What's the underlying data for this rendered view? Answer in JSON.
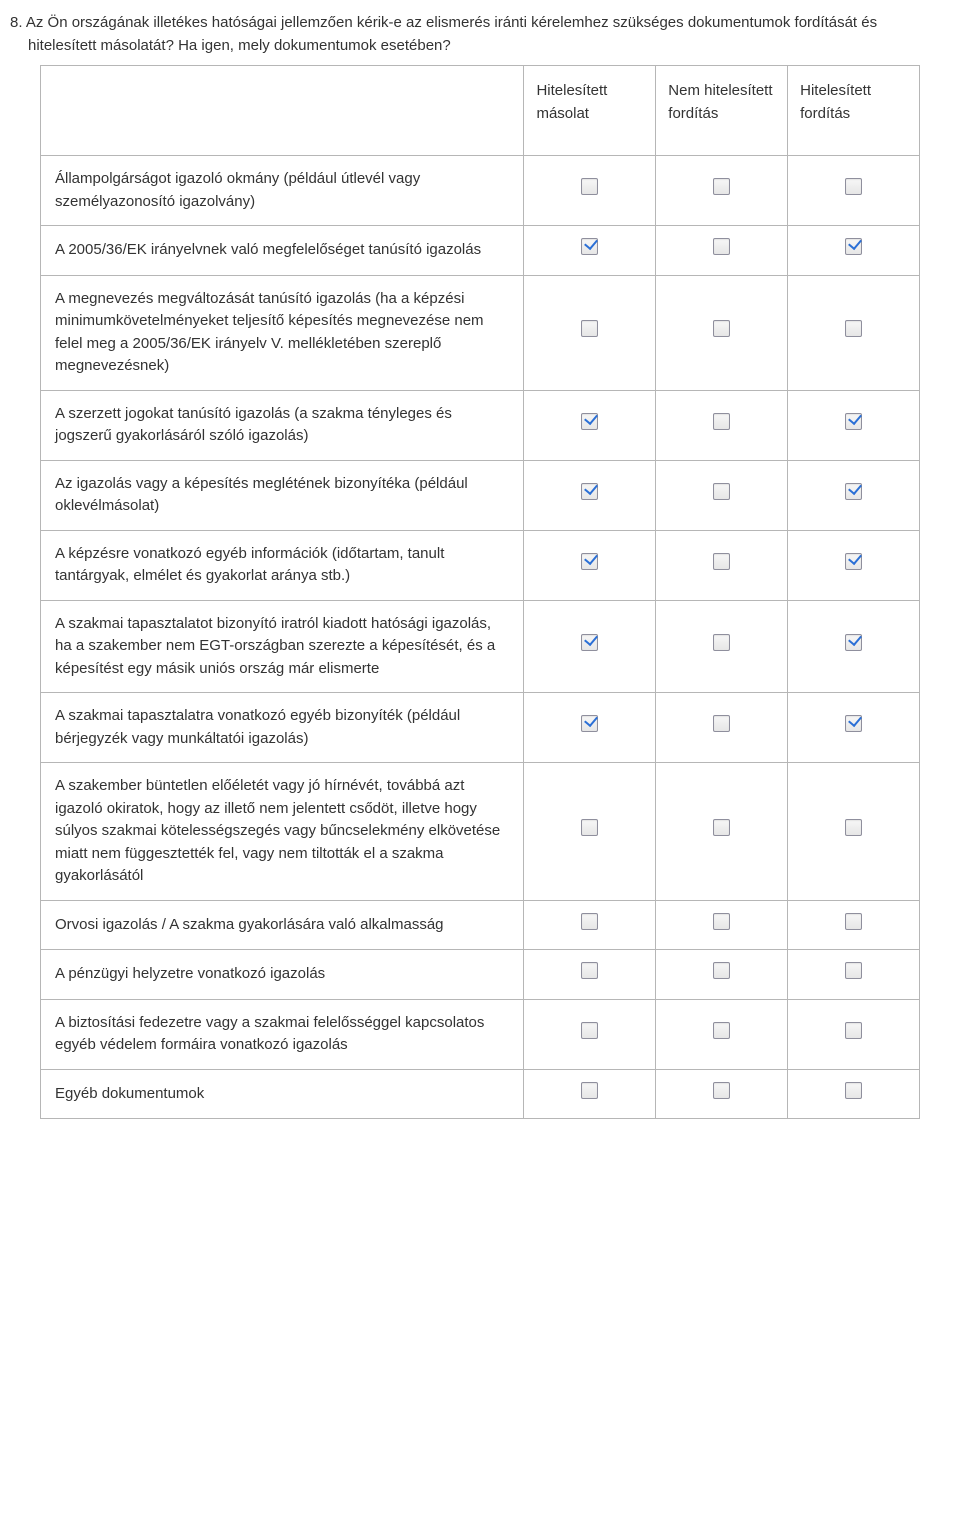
{
  "question": "8. Az Ön országának illetékes hatóságai jellemzően kérik-e az elismerés iránti kérelemhez szükséges dokumentumok fordítását és hitelesített másolatát? Ha igen, mely dokumentumok esetében?",
  "headers": {
    "col1": "Hitelesített másolat",
    "col2": "Nem hitelesített fordítás",
    "col3": "Hitelesített fordítás"
  },
  "rows": [
    {
      "label": "Állampolgárságot igazoló okmány (például útlevél vagy személyazonosító igazolvány)",
      "c1": false,
      "c2": false,
      "c3": false
    },
    {
      "label": "A 2005/36/EK irányelvnek való megfelelőséget tanúsító igazolás",
      "c1": true,
      "c2": false,
      "c3": true
    },
    {
      "label": "A megnevezés megváltozását tanúsító igazolás (ha a képzési minimumkövetelményeket teljesítő képesítés megnevezése nem felel meg a 2005/36/EK irányelv V. mellékletében szereplő megnevezésnek)",
      "c1": false,
      "c2": false,
      "c3": false
    },
    {
      "label": "A szerzett jogokat tanúsító igazolás (a szakma tényleges és jogszerű gyakorlásáról szóló igazolás)",
      "c1": true,
      "c2": false,
      "c3": true
    },
    {
      "label": "Az igazolás vagy a képesítés meglétének bizonyítéka (például oklevélmásolat)",
      "c1": true,
      "c2": false,
      "c3": true
    },
    {
      "label": "A képzésre vonatkozó egyéb információk (időtartam, tanult tantárgyak, elmélet és gyakorlat aránya stb.)",
      "c1": true,
      "c2": false,
      "c3": true
    },
    {
      "label": "A szakmai tapasztalatot bizonyító iratról kiadott hatósági igazolás, ha a szakember nem EGT-országban szerezte a képesítését, és a képesítést egy másik uniós ország már elismerte",
      "c1": true,
      "c2": false,
      "c3": true
    },
    {
      "label": "A szakmai tapasztalatra vonatkozó egyéb bizonyíték (például bérjegyzék vagy munkáltatói igazolás)",
      "c1": true,
      "c2": false,
      "c3": true
    },
    {
      "label": "A szakember büntetlen előéletét vagy jó hírnévét, továbbá azt igazoló okiratok, hogy az illető nem jelentett csődöt, illetve hogy súlyos szakmai kötelességszegés vagy bűncselekmény elkövetése miatt nem függesztették fel, vagy nem tiltották el a szakma gyakorlásától",
      "c1": false,
      "c2": false,
      "c3": false
    },
    {
      "label": "Orvosi igazolás / A szakma gyakorlására való alkalmasság",
      "c1": false,
      "c2": false,
      "c3": false
    },
    {
      "label": "A pénzügyi helyzetre vonatkozó igazolás",
      "c1": false,
      "c2": false,
      "c3": false
    },
    {
      "label": "A biztosítási fedezetre vagy a szakmai felelősséggel kapcsolatos egyéb védelem formáira vonatkozó igazolás",
      "c1": false,
      "c2": false,
      "c3": false
    },
    {
      "label": "Egyéb dokumentumok",
      "c1": false,
      "c2": false,
      "c3": false
    }
  ]
}
